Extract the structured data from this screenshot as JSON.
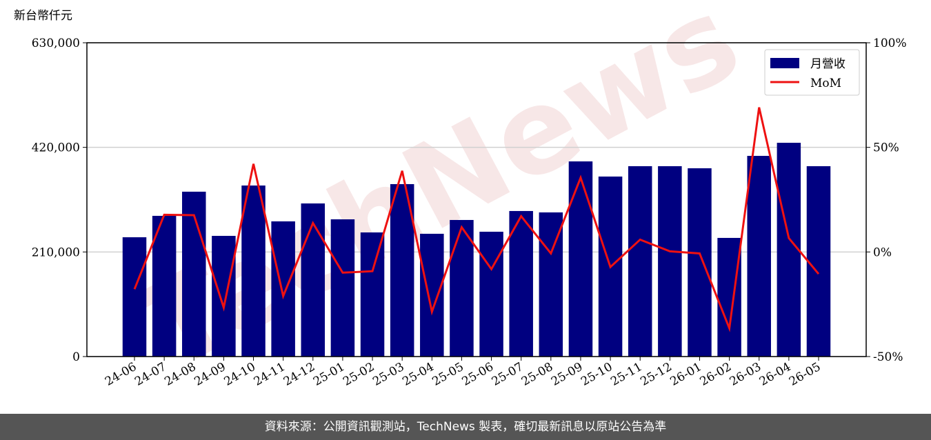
{
  "chart_data": {
    "type": "bar-line",
    "y_label": "新台幣仟元",
    "watermark": "TechNews",
    "footer": "資料來源：公開資訊觀測站，TechNews 製表，確切最新訊息以原站公告為準",
    "categories": [
      "24-06",
      "24-07",
      "24-08",
      "24-09",
      "24-10",
      "24-11",
      "24-12",
      "25-01",
      "25-02",
      "25-03",
      "25-04",
      "25-05",
      "25-06",
      "25-07",
      "25-08",
      "25-09",
      "25-10",
      "25-11",
      "25-12",
      "26-01",
      "26-02",
      "26-03",
      "26-04",
      "26-05"
    ],
    "series": [
      {
        "name": "月營收",
        "color": "#000080",
        "values": [
          239500,
          282500,
          331000,
          242300,
          343400,
          271400,
          307400,
          275500,
          249200,
          346200,
          246500,
          274200,
          250600,
          292200,
          289400,
          391800,
          361400,
          382200,
          382200,
          378000,
          238200,
          402900,
          429200,
          382200
        ]
      },
      {
        "name": "MoM",
        "color": "#ee1111",
        "axis": "y2",
        "values": [
          -17.8,
          17.8,
          17.6,
          -26.6,
          42.1,
          -21.1,
          13.8,
          -9.9,
          -9.2,
          38.8,
          -28.6,
          11.8,
          -8.2,
          17.1,
          -0.7,
          35.5,
          -7.2,
          5.9,
          0.3,
          -0.7,
          -36.5,
          69.1,
          6.6,
          -10.5
        ]
      }
    ],
    "ylim": [
      0,
      630000
    ],
    "yticks": [
      0,
      {
        "value": 210000,
        "label": "210,000"
      },
      {
        "value": 420000,
        "label": "420,000"
      },
      {
        "value": 630000,
        "label": "630,000"
      }
    ],
    "y2lim": [
      -50,
      100
    ],
    "y2ticks": [
      {
        "value": -50,
        "label": "-50%"
      },
      {
        "value": 0,
        "label": "0%"
      },
      {
        "value": 50,
        "label": "50%"
      },
      {
        "value": 100,
        "label": "100%"
      }
    ],
    "grid": true,
    "legend": "upper right"
  }
}
